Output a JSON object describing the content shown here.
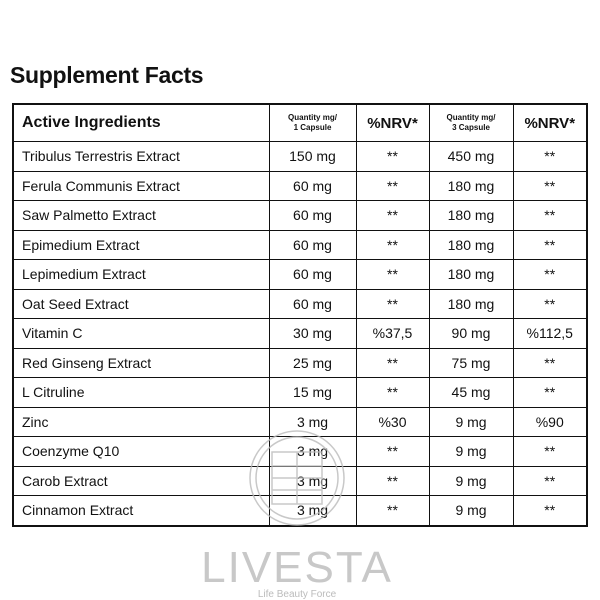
{
  "title": "Supplement Facts",
  "table": {
    "header": [
      "Active Ingredients",
      [
        "Quantity mg/",
        "1 Capsule"
      ],
      "%NRV*",
      [
        "Quantity mg/",
        "3 Capsule"
      ],
      "%NRV*"
    ],
    "rows": [
      [
        "Tribulus Terrestris Extract",
        "150 mg",
        "**",
        "450 mg",
        "**"
      ],
      [
        "Ferula Communis Extract",
        "60 mg",
        "**",
        "180 mg",
        "**"
      ],
      [
        "Saw Palmetto Extract",
        "60 mg",
        "**",
        "180 mg",
        "**"
      ],
      [
        "Epimedium Extract",
        "60 mg",
        "**",
        "180 mg",
        "**"
      ],
      [
        "Lepimedium Extract",
        "60 mg",
        "**",
        "180 mg",
        "**"
      ],
      [
        "Oat Seed Extract",
        "60 mg",
        "**",
        "180 mg",
        "**"
      ],
      [
        "Vitamin C",
        "30 mg",
        "%37,5",
        "90 mg",
        "%112,5"
      ],
      [
        "Red Ginseng Extract",
        "25 mg",
        "**",
        "75 mg",
        "**"
      ],
      [
        "L Citruline",
        "15 mg",
        "**",
        "45 mg",
        "**"
      ],
      [
        "Zinc",
        "3 mg",
        "%30",
        "9 mg",
        "%90"
      ],
      [
        "Coenzyme Q10",
        "3 mg",
        "**",
        "9 mg",
        "**"
      ],
      [
        "Carob Extract",
        "3 mg",
        "**",
        "9 mg",
        "**"
      ],
      [
        "Cinnamon Extract",
        "3 mg",
        "**",
        "9 mg",
        "**"
      ]
    ]
  },
  "watermark": {
    "brand": "LIVESTA",
    "tagline": "Life Beauty Force"
  }
}
